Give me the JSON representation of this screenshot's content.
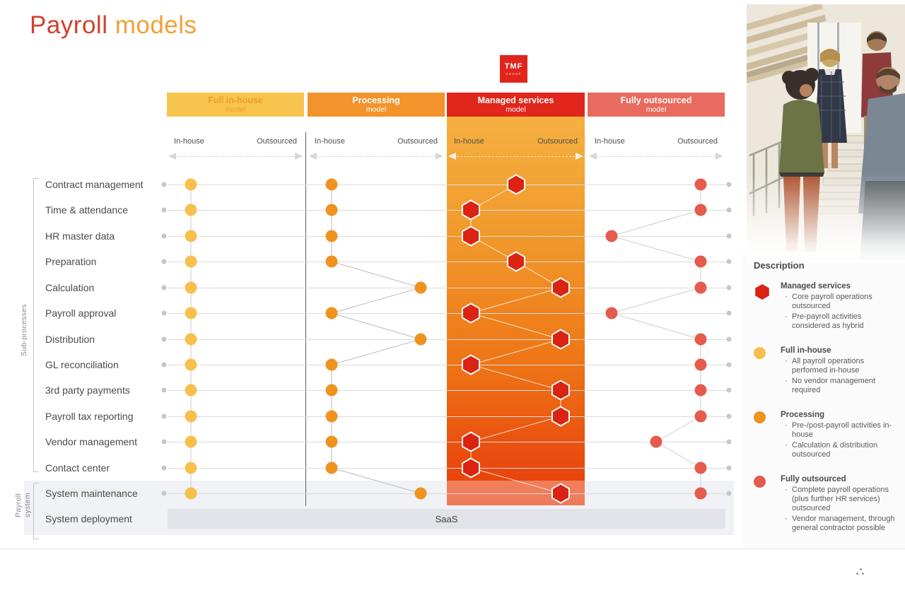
{
  "page": {
    "title_red": "Payroll",
    "title_orange": " models",
    "logo_line1": "TMF",
    "logo_line2": "GROUP",
    "saas_label": "SaaS",
    "group_labels": {
      "subprocesses": "Sub-processes",
      "payroll_system_1": "Payroll",
      "payroll_system_2": "system"
    },
    "axis": {
      "left": "In-house",
      "right": "Outsourced"
    }
  },
  "chart_data": {
    "type": "scatter",
    "title": "Payroll models",
    "x_scale": [
      "in-house",
      "hybrid",
      "outsourced"
    ],
    "xlabel_left": "In-house",
    "xlabel_right": "Outsourced",
    "categories": [
      "Contract management",
      "Time & attendance",
      "HR master data",
      "Preparation",
      "Calculation",
      "Payroll approval",
      "Distribution",
      "GL reconciliation",
      "3rd party payments",
      "Payroll tax reporting",
      "Vendor management",
      "Contact center",
      "System maintenance",
      "System deployment"
    ],
    "system_deployment_value": "SaaS",
    "series": [
      {
        "name": "Full in-house",
        "subtitle": "model",
        "marker": "circle",
        "color": "#f7c04c",
        "header_bg": "#f7c44e",
        "header_text": "#ee9d2b",
        "connector": "#c9cdd2",
        "values": [
          "in-house",
          "in-house",
          "in-house",
          "in-house",
          "in-house",
          "in-house",
          "in-house",
          "in-house",
          "in-house",
          "in-house",
          "in-house",
          "in-house",
          "in-house"
        ]
      },
      {
        "name": "Processing",
        "subtitle": "model",
        "marker": "circle",
        "color": "#f0921e",
        "header_bg": "#f2932b",
        "header_text": "#ffffff",
        "connector": "#b9bdc2",
        "values": [
          "in-house",
          "in-house",
          "in-house",
          "in-house",
          "outsourced",
          "in-house",
          "outsourced",
          "in-house",
          "in-house",
          "in-house",
          "in-house",
          "in-house",
          "outsourced"
        ]
      },
      {
        "name": "Managed services",
        "subtitle": "model",
        "marker": "hexagon",
        "color": "#db2314",
        "header_bg": "#e1261c",
        "header_text": "#ffffff",
        "connector": "rgba(255,255,255,0.8)",
        "column_gradient": [
          "#f5b041",
          "#e83c0c"
        ],
        "values": [
          "hybrid",
          "in-house",
          "in-house",
          "hybrid",
          "outsourced",
          "in-house",
          "outsourced",
          "in-house",
          "outsourced",
          "outsourced",
          "in-house",
          "in-house",
          "outsourced"
        ]
      },
      {
        "name": "Fully outsourced",
        "subtitle": "model",
        "marker": "circle",
        "color": "#e55b4d",
        "header_bg": "#e96a5e",
        "header_text": "#ffffff",
        "connector": "#c9cdd2",
        "values": [
          "outsourced",
          "outsourced",
          "in-house",
          "outsourced",
          "outsourced",
          "in-house",
          "outsourced",
          "outsourced",
          "outsourced",
          "outsourced",
          "hybrid",
          "outsourced",
          "outsourced"
        ]
      }
    ]
  },
  "legend": {
    "heading": "Description",
    "items": [
      {
        "marker": "hexagon",
        "color": "#db2314",
        "title": "Managed services",
        "bullets": [
          "Core payroll operations outsourced",
          "Pre-payroll activities considered as hybrid"
        ]
      },
      {
        "marker": "circle",
        "color": "#f7c04c",
        "title": "Full in-house",
        "bullets": [
          "All payroll operations performed in-house",
          "No vendor management required"
        ]
      },
      {
        "marker": "circle",
        "color": "#f0921e",
        "title": "Processing",
        "bullets": [
          "Pre-/post-payroll activities in-house",
          "Calculation & distribution outsourced"
        ]
      },
      {
        "marker": "circle",
        "color": "#e55b4d",
        "title": "Fully outsourced",
        "bullets": [
          "Complete payroll operations (plus further HR services) outsourced",
          "Vendor management, through general contractor possible"
        ]
      }
    ]
  }
}
